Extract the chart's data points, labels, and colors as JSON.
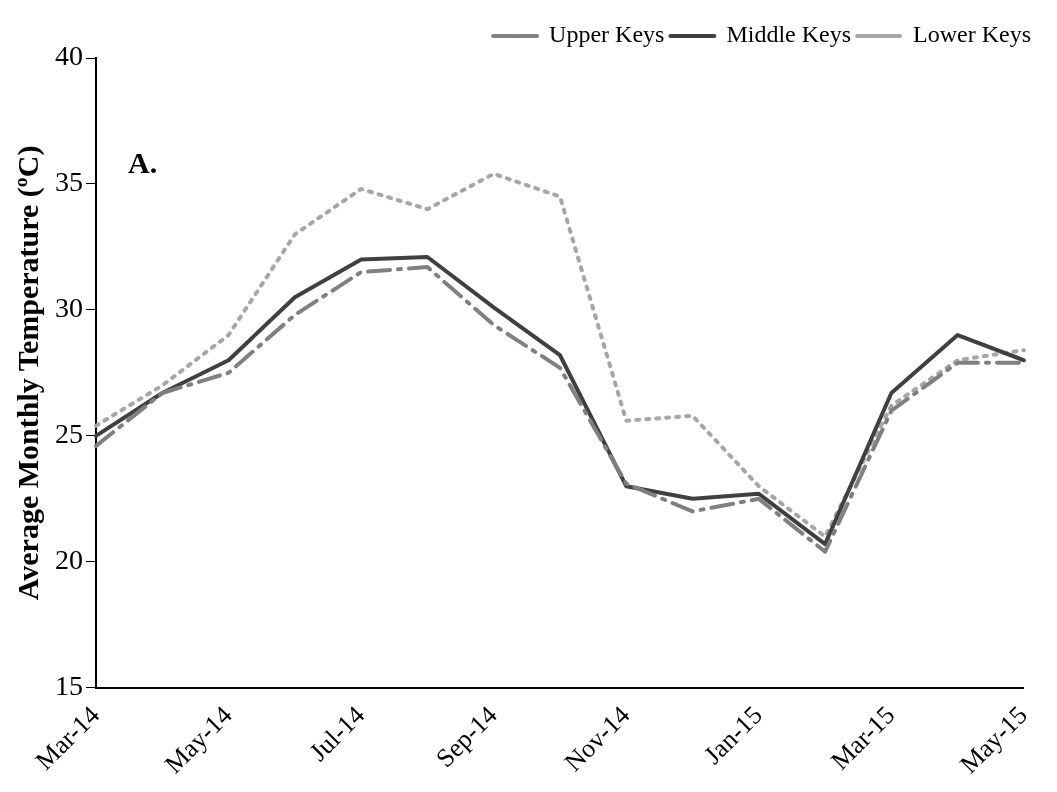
{
  "chart_data": {
    "type": "line",
    "ylabel": "Average Monthly Temperature (ºC)",
    "annotations": [
      "A."
    ],
    "categories": [
      "Mar-14",
      null,
      "May-14",
      null,
      "Jul-14",
      null,
      "Sep-14",
      null,
      "Nov-14",
      null,
      "Jan-15",
      null,
      "Mar-15",
      null,
      "May-15"
    ],
    "series": [
      {
        "name": "Upper Keys",
        "color": "#808080",
        "line_style": "dashed",
        "values": [
          24.6,
          26.7,
          27.5,
          29.8,
          31.5,
          31.7,
          29.4,
          27.7,
          23.1,
          22.0,
          22.5,
          20.4,
          26.0,
          27.9,
          27.9
        ]
      },
      {
        "name": "Middle Keys",
        "color": "#404040",
        "line_style": "solid",
        "values": [
          25.0,
          26.7,
          28.0,
          30.5,
          32.0,
          32.1,
          30.1,
          28.2,
          23.0,
          22.5,
          22.7,
          20.7,
          26.7,
          29.0,
          28.0
        ]
      },
      {
        "name": "Lower Keys",
        "color": "#a6a6a6",
        "line_style": "dotted",
        "values": [
          25.4,
          27.0,
          29.0,
          33.0,
          34.8,
          34.0,
          35.4,
          34.5,
          25.6,
          25.8,
          23.0,
          21.0,
          26.2,
          28.0,
          28.4
        ]
      }
    ],
    "ylim": [
      15,
      40
    ],
    "yticks": [
      15,
      20,
      25,
      30,
      35,
      40
    ],
    "grid": false,
    "legend": "top right",
    "marker": "none"
  }
}
